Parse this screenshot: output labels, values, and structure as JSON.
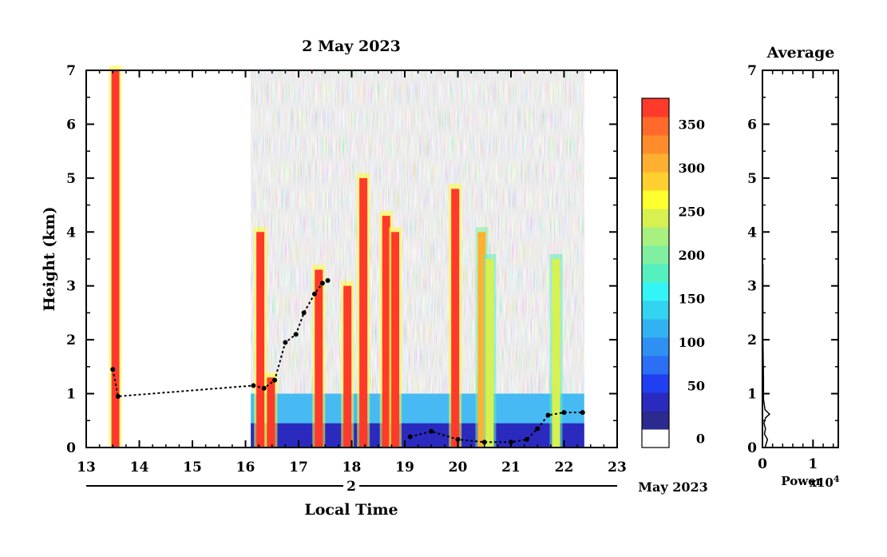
{
  "chart_data": [
    {
      "type": "heatmap",
      "title": "2 May 2023",
      "xlabel": "Local Time",
      "ylabel": "Height (km)",
      "date_axis": {
        "day_label": "2",
        "month_year_label": "May 2023"
      },
      "xlim": [
        13,
        23
      ],
      "ylim": [
        0,
        7
      ],
      "x_ticks": [
        "13",
        "14",
        "15",
        "16",
        "17",
        "18",
        "19",
        "20",
        "21",
        "22",
        "23"
      ],
      "y_ticks": [
        "0",
        "1",
        "2",
        "3",
        "4",
        "5",
        "6",
        "7"
      ],
      "colorbar": {
        "ticks": [
          "0",
          "50",
          "100",
          "150",
          "200",
          "250",
          "300",
          "350"
        ],
        "range": [
          0,
          380
        ],
        "colors": [
          "#ffffff",
          "#2a2a8f",
          "#2a2abf",
          "#1f3ff0",
          "#2a6ff5",
          "#2f90f4",
          "#33b2f2",
          "#33d4f0",
          "#33f5f5",
          "#55f0c0",
          "#80f0a0",
          "#a8f080",
          "#d8f050",
          "#ffff30",
          "#ffd030",
          "#ffb030",
          "#ff8c2a",
          "#ff6a2a",
          "#ff3a2a"
        ]
      },
      "data_coverage": [
        {
          "start": 13.48,
          "end": 13.62,
          "top_km": 7.0
        },
        {
          "start": 16.1,
          "end": 22.38,
          "top_km": 7.0
        }
      ],
      "strong_plumes": [
        {
          "time": 13.55,
          "top_km": 7.0,
          "value": 380
        },
        {
          "time": 16.28,
          "top_km": 4.0,
          "value": 380
        },
        {
          "time": 16.48,
          "top_km": 1.3,
          "value": 380
        },
        {
          "time": 17.38,
          "top_km": 3.3,
          "value": 380
        },
        {
          "time": 17.92,
          "top_km": 3.0,
          "value": 380
        },
        {
          "time": 18.22,
          "top_km": 5.0,
          "value": 380
        },
        {
          "time": 18.65,
          "top_km": 4.3,
          "value": 380
        },
        {
          "time": 18.82,
          "top_km": 4.0,
          "value": 380
        },
        {
          "time": 19.95,
          "top_km": 4.8,
          "value": 380
        },
        {
          "time": 20.45,
          "top_km": 4.0,
          "value": 300
        },
        {
          "time": 20.6,
          "top_km": 3.5,
          "value": 250
        },
        {
          "time": 21.85,
          "top_km": 3.5,
          "value": 250
        }
      ],
      "boundary_layer_top": [
        {
          "time": 13.5,
          "height_km": 1.45
        },
        {
          "time": 13.6,
          "height_km": 0.95
        },
        {
          "time": 16.15,
          "height_km": 1.15
        },
        {
          "time": 16.35,
          "height_km": 1.1
        },
        {
          "time": 16.55,
          "height_km": 1.25
        },
        {
          "time": 16.75,
          "height_km": 1.95
        },
        {
          "time": 16.95,
          "height_km": 2.1
        },
        {
          "time": 17.1,
          "height_km": 2.5
        },
        {
          "time": 17.3,
          "height_km": 2.85
        },
        {
          "time": 17.45,
          "height_km": 3.05
        },
        {
          "time": 17.55,
          "height_km": 3.1
        }
      ],
      "surface_layer_top": [
        {
          "time": 19.1,
          "height_km": 0.2
        },
        {
          "time": 19.5,
          "height_km": 0.3
        },
        {
          "time": 20.0,
          "height_km": 0.15
        },
        {
          "time": 20.5,
          "height_km": 0.1
        },
        {
          "time": 21.0,
          "height_km": 0.1
        },
        {
          "time": 21.3,
          "height_km": 0.15
        },
        {
          "time": 21.5,
          "height_km": 0.35
        },
        {
          "time": 21.7,
          "height_km": 0.6
        },
        {
          "time": 22.0,
          "height_km": 0.65
        },
        {
          "time": 22.35,
          "height_km": 0.65
        }
      ]
    },
    {
      "type": "line",
      "title": "Average",
      "xlabel": "Power",
      "x_multiplier_label": "x10",
      "x_multiplier_exp": "4",
      "xlim": [
        0,
        1.5
      ],
      "ylim": [
        0,
        7
      ],
      "x_ticks": [
        "0",
        "1"
      ],
      "y_ticks": [
        "0",
        "1",
        "2",
        "3",
        "4",
        "5",
        "6",
        "7"
      ],
      "series": [
        {
          "x": [
            0.05,
            0.1,
            0.04,
            0.06,
            0.03,
            0.06,
            0.14,
            0.05,
            0.02,
            0.02,
            0.01,
            0.01,
            0.01
          ],
          "y": [
            0.0,
            0.15,
            0.25,
            0.35,
            0.45,
            0.55,
            0.62,
            0.7,
            0.9,
            1.3,
            2.0,
            3.0,
            3.4
          ]
        }
      ]
    }
  ]
}
